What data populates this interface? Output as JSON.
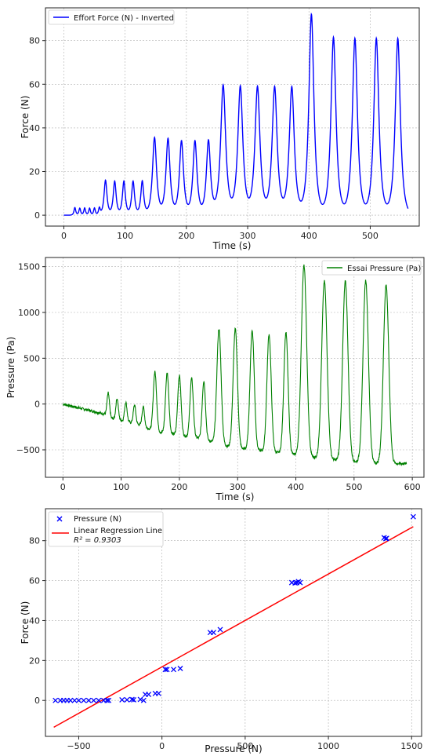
{
  "chart_data": [
    {
      "type": "line",
      "xlabel": "Time (s)",
      "ylabel": "Force (N)",
      "xlim": [
        -30,
        580
      ],
      "ylim": [
        -5,
        95
      ],
      "xticks": [
        0,
        100,
        200,
        300,
        400,
        500
      ],
      "yticks": [
        0,
        20,
        40,
        60,
        80
      ],
      "grid": true,
      "legend_position": "top-left",
      "series": [
        {
          "name": "Effort Force (N) - Inverted",
          "color": "#0000ff",
          "baseline": 0,
          "x_range": [
            0,
            562
          ],
          "peaks": [
            [
              18,
              3.5
            ],
            [
              26,
              3.2
            ],
            [
              34,
              3.3
            ],
            [
              42,
              3.2
            ],
            [
              50,
              3.3
            ],
            [
              58,
              3.2
            ],
            [
              68,
              16
            ],
            [
              83,
              15.5
            ],
            [
              98,
              15.5
            ],
            [
              113,
              15.5
            ],
            [
              128,
              15.5
            ],
            [
              148,
              35.5
            ],
            [
              170,
              35
            ],
            [
              192,
              34
            ],
            [
              214,
              34
            ],
            [
              236,
              34
            ],
            [
              260,
              59.5
            ],
            [
              288,
              59
            ],
            [
              316,
              58.8
            ],
            [
              344,
              58.7
            ],
            [
              372,
              58.7
            ],
            [
              404,
              92
            ],
            [
              440,
              81.5
            ],
            [
              475,
              81
            ],
            [
              510,
              81
            ],
            [
              545,
              81
            ]
          ]
        }
      ]
    },
    {
      "type": "line",
      "xlabel": "Time (s)",
      "ylabel": "Pressure (Pa)",
      "xlim": [
        -30,
        620
      ],
      "ylim": [
        -800,
        1600
      ],
      "xticks": [
        0,
        100,
        200,
        300,
        400,
        500,
        600
      ],
      "yticks": [
        -500,
        0,
        500,
        1000,
        1500
      ],
      "grid": true,
      "legend_position": "top-right",
      "series": [
        {
          "name": "Essai Pressure (Pa)",
          "color": "#008000",
          "x_range": [
            0,
            590
          ],
          "peaks": [
            [
              78,
              100,
              -150
            ],
            [
              93,
              60,
              -170
            ],
            [
              108,
              20,
              -190
            ],
            [
              123,
              -10,
              -210
            ],
            [
              138,
              -30,
              -240
            ],
            [
              158,
              350,
              -300
            ],
            [
              179,
              340,
              -320
            ],
            [
              200,
              310,
              -340
            ],
            [
              221,
              280,
              -360
            ],
            [
              242,
              250,
              -380
            ],
            [
              268,
              820,
              -440
            ],
            [
              296,
              820,
              -480
            ],
            [
              325,
              800,
              -500
            ],
            [
              354,
              760,
              -520
            ],
            [
              383,
              780,
              -540
            ],
            [
              414,
              1510,
              -570
            ],
            [
              449,
              1340,
              -600
            ],
            [
              485,
              1340,
              -620
            ],
            [
              520,
              1350,
              -640
            ],
            [
              555,
              1300,
              -650
            ]
          ],
          "early_baseline_start": 0,
          "early_baseline_end": -120,
          "tail_value": -650
        }
      ]
    },
    {
      "type": "scatter",
      "xlabel": "Pressure (N)",
      "ylabel": "Force (N)",
      "xlim": [
        -700,
        1560
      ],
      "ylim": [
        -18,
        96
      ],
      "xticks": [
        -500,
        0,
        500,
        1000,
        1500
      ],
      "yticks": [
        0,
        20,
        40,
        60,
        80
      ],
      "grid": true,
      "legend_position": "top-left",
      "series": [
        {
          "name": "Pressure (N)",
          "color": "#0000ff",
          "marker": "x",
          "points": [
            [
              -640,
              0
            ],
            [
              -610,
              0
            ],
            [
              -590,
              0
            ],
            [
              -570,
              0
            ],
            [
              -550,
              0
            ],
            [
              -525,
              0
            ],
            [
              -500,
              0
            ],
            [
              -470,
              0
            ],
            [
              -440,
              0
            ],
            [
              -410,
              0
            ],
            [
              -380,
              0
            ],
            [
              -350,
              0
            ],
            [
              -330,
              0
            ],
            [
              -320,
              0
            ],
            [
              -240,
              0.3
            ],
            [
              -210,
              0.3
            ],
            [
              -180,
              0.5
            ],
            [
              -170,
              0.3
            ],
            [
              -130,
              0.5
            ],
            [
              -110,
              0
            ],
            [
              -100,
              3
            ],
            [
              -80,
              3
            ],
            [
              -40,
              3.5
            ],
            [
              -20,
              3.5
            ],
            [
              20,
              15.5
            ],
            [
              30,
              15.5
            ],
            [
              70,
              15.5
            ],
            [
              110,
              16
            ],
            [
              290,
              34
            ],
            [
              310,
              34
            ],
            [
              350,
              35.5
            ],
            [
              780,
              59
            ],
            [
              800,
              58.8
            ],
            [
              810,
              59
            ],
            [
              820,
              59.5
            ],
            [
              830,
              59
            ],
            [
              1335,
              81.5
            ],
            [
              1345,
              81
            ],
            [
              1350,
              81.2
            ],
            [
              1510,
              92
            ]
          ]
        },
        {
          "name": "Linear Regression Line",
          "color": "#ff0000",
          "type": "line",
          "slope": 0.0465,
          "intercept": 16.8,
          "x_range": [
            -650,
            1510
          ]
        }
      ],
      "annotation": "R² = 0.9303"
    }
  ]
}
